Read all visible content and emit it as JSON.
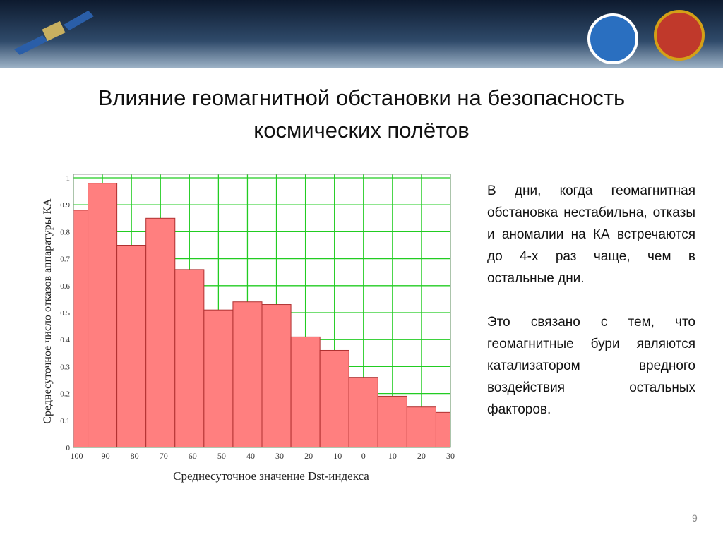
{
  "slide": {
    "title_lines": [
      "Влияние геомагнитной обстановки на безопасность",
      "космических полётов"
    ],
    "paragraphs": [
      "В дни, когда геомагнитная обстановка нестабильна, отказы и аномалии на КА встречаются до 4-х раз чаще, чем в остальные дни.",
      "Это связано с тем, что геомагнитные бури являются катализатором вредного воздействия остальных факторов."
    ],
    "page_number": "9"
  },
  "chart_data": {
    "type": "histogram",
    "x_label": "Среднесуточное значение Dst-индекса",
    "y_label": "Среднесуточное число отказов аппаратуры КА",
    "bins": [
      -105,
      -95,
      -85,
      -75,
      -65,
      -55,
      -45,
      -35,
      -25,
      -15,
      -5,
      5,
      15,
      25,
      35
    ],
    "values": [
      0.88,
      0.98,
      0.75,
      0.85,
      0.66,
      0.51,
      0.54,
      0.53,
      0.41,
      0.36,
      0.26,
      0.19,
      0.15,
      0.13
    ],
    "color": "#ff7f7f",
    "xlim": [
      -100,
      30
    ],
    "xticks": [
      {
        "value": -100,
        "label": "– 100"
      },
      {
        "value": -90,
        "label": "– 90"
      },
      {
        "value": -80,
        "label": "– 80"
      },
      {
        "value": -70,
        "label": "– 70"
      },
      {
        "value": -60,
        "label": "– 60"
      },
      {
        "value": -50,
        "label": "– 50"
      },
      {
        "value": -40,
        "label": "– 40"
      },
      {
        "value": -30,
        "label": "– 30"
      },
      {
        "value": -20,
        "label": "– 20"
      },
      {
        "value": -10,
        "label": "– 10"
      },
      0,
      10,
      20,
      30
    ],
    "ylim": [
      0,
      1
    ],
    "yticks": [
      0,
      0.1,
      0.2,
      0.3,
      0.4,
      0.5,
      0.6,
      0.7,
      0.8,
      0.9,
      1
    ],
    "grid": true,
    "grid_color": "#22cc22"
  }
}
